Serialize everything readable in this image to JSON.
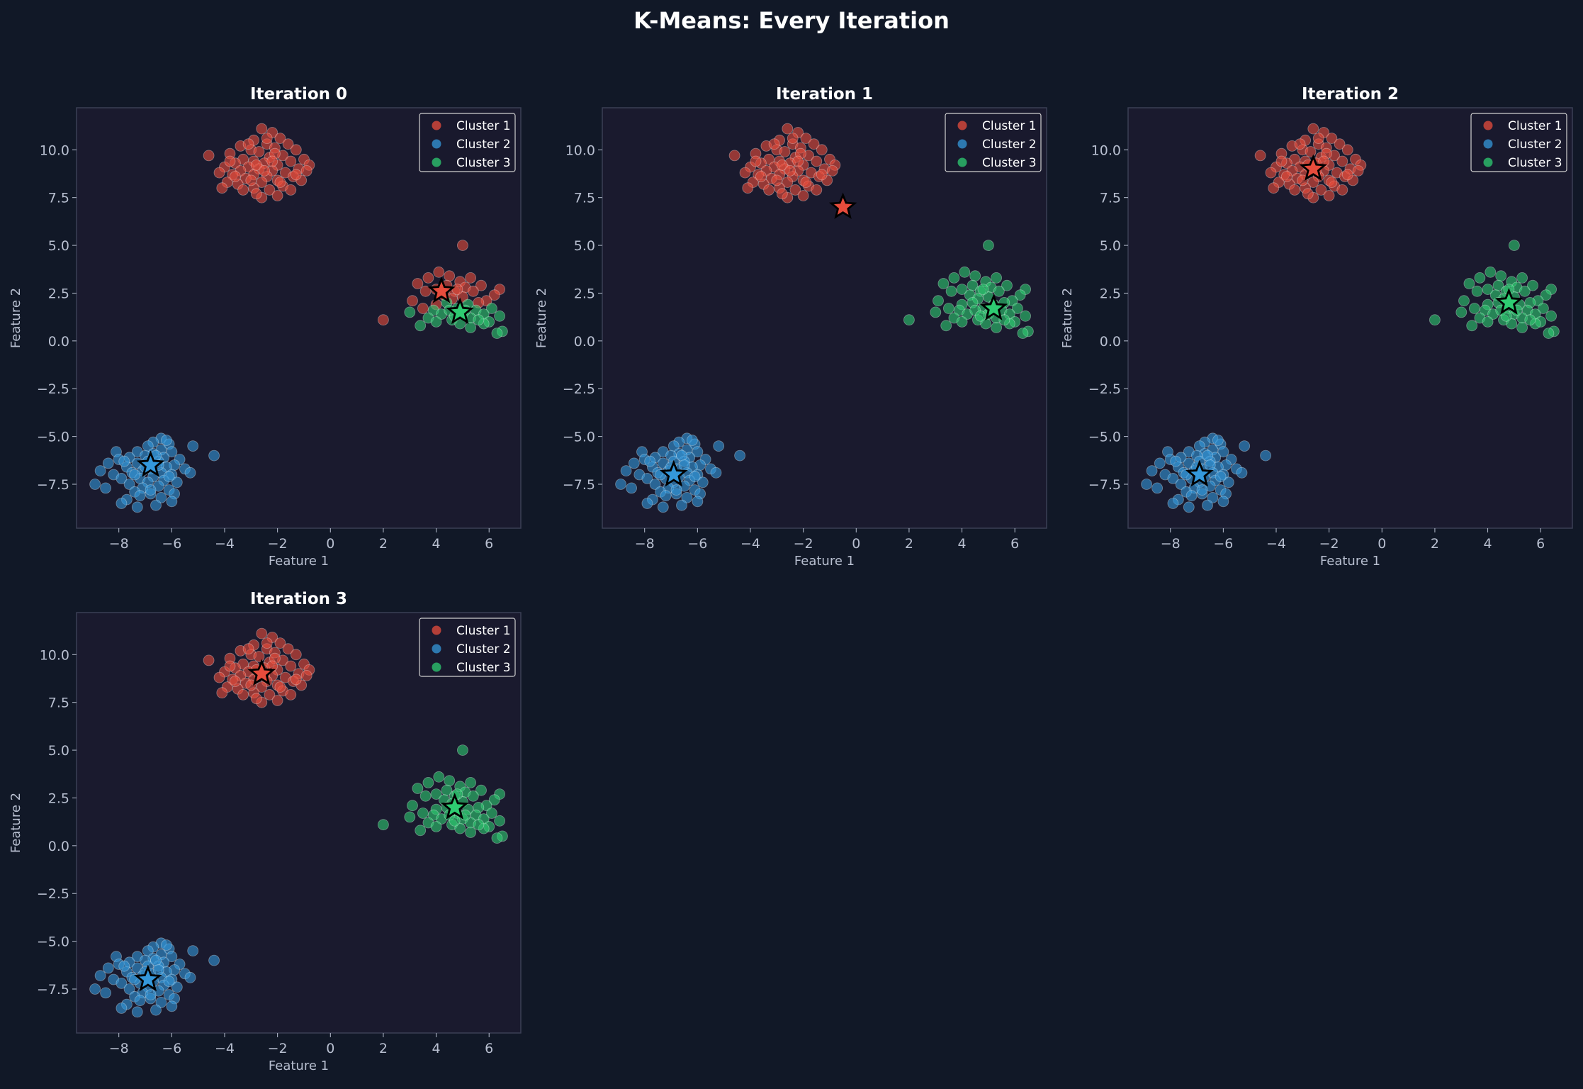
{
  "figure_title": "K-Means: Every Iteration",
  "colors": {
    "background": "#111827",
    "axes_face": "#1a1a2e",
    "cluster_1": "#e74c3c",
    "cluster_2": "#3498db",
    "cluster_3": "#2ecc71",
    "text": "#ffffff",
    "tick_text": "#b8bfd0",
    "spine": "#3a3f55"
  },
  "chart_data": [
    {
      "type": "scatter",
      "title": "Iteration 0",
      "xlabel": "Feature 1",
      "ylabel": "Feature 2",
      "xlim": [
        -9.6,
        7.2
      ],
      "ylim": [
        -9.8,
        12.2
      ],
      "xticks": [
        -8,
        -6,
        -4,
        -2,
        0,
        2,
        4,
        6
      ],
      "xtick_labels": [
        "−8",
        "−6",
        "−4",
        "−2",
        "0",
        "2",
        "4",
        "6"
      ],
      "yticks": [
        -7.5,
        -5.0,
        -2.5,
        0.0,
        2.5,
        5.0,
        7.5,
        10.0
      ],
      "ytick_labels": [
        "−7.5",
        "−5.0",
        "−2.5",
        "0.0",
        "2.5",
        "5.0",
        "7.5",
        "10.0"
      ],
      "grid": false,
      "legend": {
        "position": "top-right",
        "entries": [
          "Cluster 1",
          "Cluster 2",
          "Cluster 3"
        ]
      },
      "assignment": "iter0",
      "centroids": [
        {
          "cluster": "Cluster 1",
          "x": 4.2,
          "y": 2.6
        },
        {
          "cluster": "Cluster 2",
          "x": -6.8,
          "y": -6.5
        },
        {
          "cluster": "Cluster 3",
          "x": 4.9,
          "y": 1.5
        }
      ]
    },
    {
      "type": "scatter",
      "title": "Iteration 1",
      "xlabel": "Feature 1",
      "ylabel": "Feature 2",
      "xlim": [
        -9.6,
        7.2
      ],
      "ylim": [
        -9.8,
        12.2
      ],
      "xticks": [
        -8,
        -6,
        -4,
        -2,
        0,
        2,
        4,
        6
      ],
      "xtick_labels": [
        "−8",
        "−6",
        "−4",
        "−2",
        "0",
        "2",
        "4",
        "6"
      ],
      "yticks": [
        -7.5,
        -5.0,
        -2.5,
        0.0,
        2.5,
        5.0,
        7.5,
        10.0
      ],
      "ytick_labels": [
        "−7.5",
        "−5.0",
        "−2.5",
        "0.0",
        "2.5",
        "5.0",
        "7.5",
        "10.0"
      ],
      "grid": false,
      "legend": {
        "position": "top-right",
        "entries": [
          "Cluster 1",
          "Cluster 2",
          "Cluster 3"
        ]
      },
      "assignment": "final",
      "centroids": [
        {
          "cluster": "Cluster 1",
          "x": -0.5,
          "y": 7.0
        },
        {
          "cluster": "Cluster 2",
          "x": -6.9,
          "y": -7.0
        },
        {
          "cluster": "Cluster 3",
          "x": 5.2,
          "y": 1.7
        }
      ]
    },
    {
      "type": "scatter",
      "title": "Iteration 2",
      "xlabel": "Feature 1",
      "ylabel": "Feature 2",
      "xlim": [
        -9.6,
        7.2
      ],
      "ylim": [
        -9.8,
        12.2
      ],
      "xticks": [
        -8,
        -6,
        -4,
        -2,
        0,
        2,
        4,
        6
      ],
      "xtick_labels": [
        "−8",
        "−6",
        "−4",
        "−2",
        "0",
        "2",
        "4",
        "6"
      ],
      "yticks": [
        -7.5,
        -5.0,
        -2.5,
        0.0,
        2.5,
        5.0,
        7.5,
        10.0
      ],
      "ytick_labels": [
        "−7.5",
        "−5.0",
        "−2.5",
        "0.0",
        "2.5",
        "5.0",
        "7.5",
        "10.0"
      ],
      "grid": false,
      "legend": {
        "position": "top-right",
        "entries": [
          "Cluster 1",
          "Cluster 2",
          "Cluster 3"
        ]
      },
      "assignment": "final",
      "centroids": [
        {
          "cluster": "Cluster 1",
          "x": -2.6,
          "y": 9.0
        },
        {
          "cluster": "Cluster 2",
          "x": -6.9,
          "y": -7.0
        },
        {
          "cluster": "Cluster 3",
          "x": 4.8,
          "y": 2.0
        }
      ]
    },
    {
      "type": "scatter",
      "title": "Iteration 3",
      "xlabel": "Feature 1",
      "ylabel": "Feature 2",
      "xlim": [
        -9.6,
        7.2
      ],
      "ylim": [
        -9.8,
        12.2
      ],
      "xticks": [
        -8,
        -6,
        -4,
        -2,
        0,
        2,
        4,
        6
      ],
      "xtick_labels": [
        "−8",
        "−6",
        "−4",
        "−2",
        "0",
        "2",
        "4",
        "6"
      ],
      "yticks": [
        -7.5,
        -5.0,
        -2.5,
        0.0,
        2.5,
        5.0,
        7.5,
        10.0
      ],
      "ytick_labels": [
        "−7.5",
        "−5.0",
        "−2.5",
        "0.0",
        "2.5",
        "5.0",
        "7.5",
        "10.0"
      ],
      "grid": false,
      "legend": {
        "position": "top-right",
        "entries": [
          "Cluster 1",
          "Cluster 2",
          "Cluster 3"
        ]
      },
      "assignment": "final",
      "centroids": [
        {
          "cluster": "Cluster 1",
          "x": -2.6,
          "y": 9.0
        },
        {
          "cluster": "Cluster 2",
          "x": -6.9,
          "y": -7.0
        },
        {
          "cluster": "Cluster 3",
          "x": 4.7,
          "y": 2.0
        }
      ]
    }
  ],
  "point_groups": [
    {
      "name": "blob-a",
      "points": [
        [
          -2.6,
          11.1
        ],
        [
          -2.2,
          10.9
        ],
        [
          -1.9,
          10.6
        ],
        [
          -2.9,
          10.5
        ],
        [
          -2.4,
          10.3
        ],
        [
          -1.6,
          10.3
        ],
        [
          -3.4,
          10.2
        ],
        [
          -2.1,
          10.1
        ],
        [
          -1.3,
          10.0
        ],
        [
          -3.0,
          10.0
        ],
        [
          -2.7,
          9.9
        ],
        [
          -3.8,
          9.8
        ],
        [
          -4.6,
          9.7
        ],
        [
          -1.8,
          9.7
        ],
        [
          -2.3,
          9.6
        ],
        [
          -3.3,
          9.5
        ],
        [
          -1.0,
          9.5
        ],
        [
          -2.9,
          9.4
        ],
        [
          -1.5,
          9.4
        ],
        [
          -3.6,
          9.3
        ],
        [
          -2.5,
          9.3
        ],
        [
          -2.0,
          9.2
        ],
        [
          -0.8,
          9.2
        ],
        [
          -4.0,
          9.1
        ],
        [
          -3.1,
          9.1
        ],
        [
          -1.2,
          9.0
        ],
        [
          -2.7,
          9.0
        ],
        [
          -3.4,
          8.9
        ],
        [
          -2.2,
          8.9
        ],
        [
          -1.7,
          8.8
        ],
        [
          -4.2,
          8.8
        ],
        [
          -2.9,
          8.7
        ],
        [
          -3.7,
          8.7
        ],
        [
          -1.4,
          8.6
        ],
        [
          -2.4,
          8.6
        ],
        [
          -3.2,
          8.5
        ],
        [
          -2.0,
          8.4
        ],
        [
          -1.1,
          8.4
        ],
        [
          -3.9,
          8.3
        ],
        [
          -2.6,
          8.3
        ],
        [
          -3.5,
          8.2
        ],
        [
          -1.8,
          8.1
        ],
        [
          -2.9,
          8.0
        ],
        [
          -2.3,
          7.9
        ],
        [
          -3.3,
          7.9
        ],
        [
          -1.5,
          7.9
        ],
        [
          -4.1,
          8.0
        ],
        [
          -2.0,
          7.6
        ],
        [
          -2.6,
          7.5
        ],
        [
          -2.8,
          7.7
        ],
        [
          -3.0,
          8.4
        ],
        [
          -1.3,
          8.7
        ],
        [
          -3.8,
          9.4
        ],
        [
          -0.9,
          8.9
        ],
        [
          -2.4,
          10.6
        ],
        [
          -3.1,
          10.3
        ],
        [
          -2.1,
          9.8
        ],
        [
          -2.8,
          9.2
        ],
        [
          -1.9,
          8.3
        ],
        [
          -3.6,
          8.6
        ],
        [
          -2.5,
          8.9
        ],
        [
          -2.2,
          9.4
        ]
      ]
    },
    {
      "name": "blob-b",
      "points": [
        [
          -6.4,
          -5.1
        ],
        [
          -6.7,
          -5.3
        ],
        [
          -6.1,
          -5.4
        ],
        [
          -5.2,
          -5.5
        ],
        [
          -6.9,
          -5.5
        ],
        [
          -6.4,
          -5.7
        ],
        [
          -7.3,
          -5.8
        ],
        [
          -6.0,
          -5.8
        ],
        [
          -8.1,
          -5.8
        ],
        [
          -6.7,
          -5.9
        ],
        [
          -7.0,
          -6.0
        ],
        [
          -4.4,
          -6.0
        ],
        [
          -6.3,
          -6.1
        ],
        [
          -7.6,
          -6.1
        ],
        [
          -5.7,
          -6.2
        ],
        [
          -8.0,
          -6.2
        ],
        [
          -6.9,
          -6.3
        ],
        [
          -6.5,
          -6.3
        ],
        [
          -7.3,
          -6.4
        ],
        [
          -8.4,
          -6.4
        ],
        [
          -5.9,
          -6.5
        ],
        [
          -6.2,
          -6.6
        ],
        [
          -7.7,
          -6.6
        ],
        [
          -6.8,
          -6.7
        ],
        [
          -5.5,
          -6.7
        ],
        [
          -7.1,
          -6.8
        ],
        [
          -8.7,
          -6.8
        ],
        [
          -6.4,
          -6.9
        ],
        [
          -7.5,
          -6.9
        ],
        [
          -6.0,
          -7.0
        ],
        [
          -8.2,
          -7.0
        ],
        [
          -6.7,
          -7.1
        ],
        [
          -5.3,
          -6.9
        ],
        [
          -7.2,
          -7.2
        ],
        [
          -7.9,
          -7.2
        ],
        [
          -6.3,
          -7.3
        ],
        [
          -6.9,
          -7.4
        ],
        [
          -5.8,
          -7.4
        ],
        [
          -7.6,
          -7.5
        ],
        [
          -8.9,
          -7.5
        ],
        [
          -6.5,
          -7.6
        ],
        [
          -7.1,
          -7.7
        ],
        [
          -8.5,
          -7.7
        ],
        [
          -6.1,
          -7.8
        ],
        [
          -7.4,
          -7.9
        ],
        [
          -6.8,
          -8.0
        ],
        [
          -5.9,
          -8.0
        ],
        [
          -7.2,
          -8.1
        ],
        [
          -6.4,
          -8.2
        ],
        [
          -7.7,
          -8.3
        ],
        [
          -6.0,
          -8.4
        ],
        [
          -7.9,
          -8.5
        ],
        [
          -6.6,
          -8.6
        ],
        [
          -7.3,
          -8.7
        ],
        [
          -6.2,
          -5.2
        ],
        [
          -7.8,
          -6.3
        ],
        [
          -6.6,
          -6.0
        ],
        [
          -7.0,
          -6.6
        ],
        [
          -6.1,
          -7.1
        ],
        [
          -7.4,
          -7.0
        ],
        [
          -6.8,
          -7.8
        ],
        [
          -6.5,
          -6.5
        ]
      ]
    },
    {
      "name": "blob-c-upper",
      "points": [
        [
          5.0,
          5.0
        ],
        [
          4.1,
          3.6
        ],
        [
          3.7,
          3.3
        ],
        [
          4.5,
          3.4
        ],
        [
          5.3,
          3.3
        ],
        [
          4.9,
          3.1
        ],
        [
          3.3,
          3.0
        ],
        [
          4.4,
          2.9
        ],
        [
          5.7,
          2.9
        ],
        [
          5.1,
          2.8
        ],
        [
          4.0,
          2.7
        ],
        [
          6.4,
          2.7
        ],
        [
          3.6,
          2.6
        ],
        [
          4.7,
          2.6
        ],
        [
          5.4,
          2.6
        ],
        [
          4.3,
          2.4
        ],
        [
          6.2,
          2.4
        ],
        [
          5.0,
          2.3
        ],
        [
          3.1,
          2.1
        ],
        [
          4.6,
          2.2
        ],
        [
          5.9,
          2.1
        ],
        [
          2.0,
          1.1
        ],
        [
          3.5,
          1.7
        ],
        [
          4.0,
          1.9
        ],
        [
          5.6,
          2.0
        ],
        [
          4.8,
          2.7
        ]
      ]
    },
    {
      "name": "blob-c-lower",
      "points": [
        [
          4.4,
          2.0
        ],
        [
          5.2,
          1.9
        ],
        [
          3.9,
          1.6
        ],
        [
          4.8,
          1.7
        ],
        [
          5.5,
          1.6
        ],
        [
          6.1,
          1.7
        ],
        [
          3.0,
          1.5
        ],
        [
          4.2,
          1.4
        ],
        [
          5.0,
          1.4
        ],
        [
          5.8,
          1.4
        ],
        [
          6.4,
          1.3
        ],
        [
          3.7,
          1.2
        ],
        [
          4.6,
          1.1
        ],
        [
          5.3,
          1.2
        ],
        [
          6.0,
          1.0
        ],
        [
          4.0,
          1.0
        ],
        [
          4.9,
          0.9
        ],
        [
          5.8,
          0.9
        ],
        [
          3.4,
          0.8
        ],
        [
          5.3,
          0.7
        ],
        [
          6.5,
          0.5
        ],
        [
          6.3,
          0.4
        ],
        [
          4.5,
          1.6
        ],
        [
          5.6,
          1.1
        ],
        [
          4.7,
          1.3
        ],
        [
          5.1,
          1.6
        ]
      ]
    }
  ],
  "assignments": {
    "iter0": {
      "blob-a": "Cluster 1",
      "blob-b": "Cluster 2",
      "blob-c-upper": "Cluster 1",
      "blob-c-lower": "Cluster 3"
    },
    "final": {
      "blob-a": "Cluster 1",
      "blob-b": "Cluster 2",
      "blob-c-upper": "Cluster 3",
      "blob-c-lower": "Cluster 3"
    }
  }
}
